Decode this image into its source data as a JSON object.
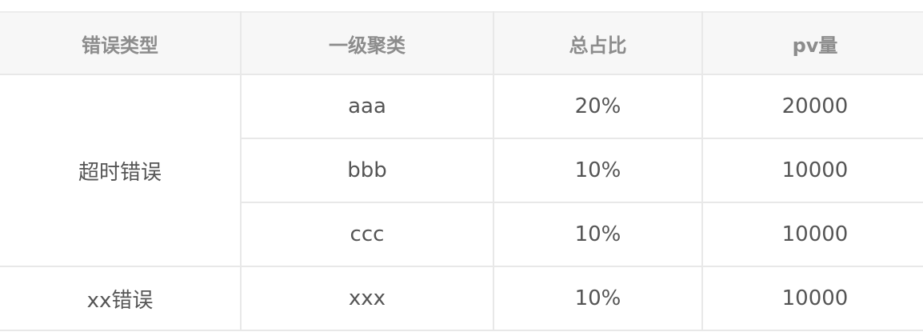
{
  "table": {
    "headers": [
      "错误类型",
      "一级聚类",
      "总占比",
      "pv量"
    ],
    "groups": [
      {
        "type": "超时错误",
        "rows": [
          {
            "cluster": "aaa",
            "ratio": "20%",
            "pv": "20000"
          },
          {
            "cluster": "bbb",
            "ratio": "10%",
            "pv": "10000"
          },
          {
            "cluster": "ccc",
            "ratio": "10%",
            "pv": "10000"
          }
        ]
      },
      {
        "type": "xx错误",
        "rows": [
          {
            "cluster": "xxx",
            "ratio": "10%",
            "pv": "10000"
          }
        ]
      }
    ]
  }
}
